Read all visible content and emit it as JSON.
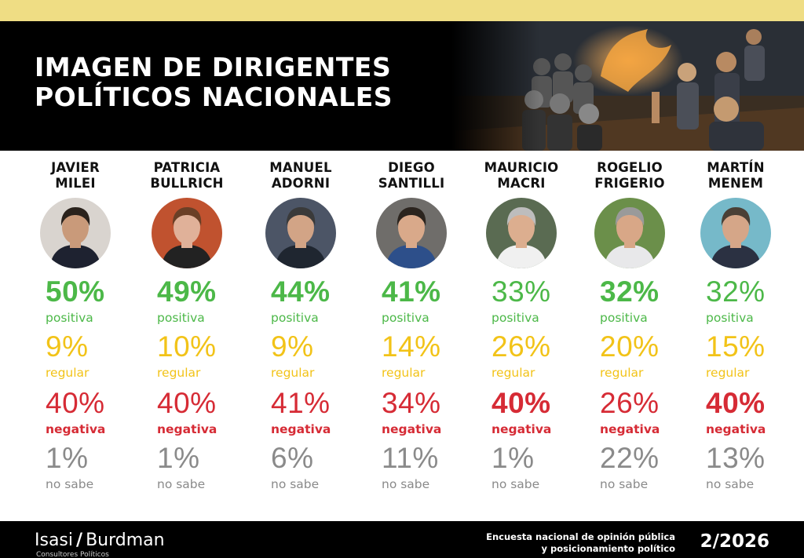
{
  "header": {
    "title_line1": "IMAGEN DE DIRIGENTES",
    "title_line2": "POLÍTICOS NACIONALES"
  },
  "labels": {
    "positiva": "positiva",
    "regular": "regular",
    "negativa": "negativa",
    "no_sabe": "no sabe"
  },
  "colors": {
    "positiva": "#4cb848",
    "regular": "#f2c318",
    "negativa": "#d62b35",
    "no_sabe": "#8a8a8a",
    "topbar": "#efdd84"
  },
  "chart_data": {
    "type": "table",
    "categories": [
      "positiva",
      "regular",
      "negativa",
      "no sabe"
    ],
    "leaders": [
      {
        "name": "JAVIER\nMILEI",
        "values": [
          "50%",
          "9%",
          "40%",
          "1%"
        ],
        "bold": [
          true,
          false,
          false,
          false
        ]
      },
      {
        "name": "PATRICIA\nBULLRICH",
        "values": [
          "49%",
          "10%",
          "40%",
          "1%"
        ],
        "bold": [
          true,
          false,
          false,
          false
        ]
      },
      {
        "name": "MANUEL\nADORNI",
        "values": [
          "44%",
          "9%",
          "41%",
          "6%"
        ],
        "bold": [
          true,
          false,
          false,
          false
        ]
      },
      {
        "name": "DIEGO\nSANTILLI",
        "values": [
          "41%",
          "14%",
          "34%",
          "11%"
        ],
        "bold": [
          true,
          false,
          false,
          false
        ]
      },
      {
        "name": "MAURICIO\nMACRI",
        "values": [
          "33%",
          "26%",
          "40%",
          "1%"
        ],
        "bold": [
          false,
          false,
          true,
          false
        ]
      },
      {
        "name": "ROGELIO\nFRIGERIO",
        "values": [
          "32%",
          "20%",
          "26%",
          "22%"
        ],
        "bold": [
          true,
          false,
          false,
          false
        ]
      },
      {
        "name": "MARTÍN\nMENEM",
        "values": [
          "32%",
          "15%",
          "40%",
          "13%"
        ],
        "bold": [
          false,
          false,
          true,
          false
        ]
      }
    ]
  },
  "footer": {
    "brand_left": "Isasi",
    "brand_sep": "/",
    "brand_right": "Burdman",
    "brand_sub": "Consultores Políticos",
    "survey_line1": "Encuesta nacional de opinión pública",
    "survey_line2": "y posicionamiento político",
    "date": "2/2026"
  }
}
